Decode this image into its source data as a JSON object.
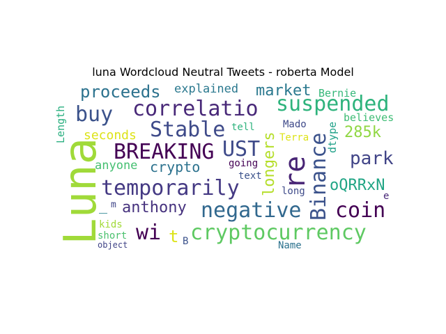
{
  "title": "luna Wordcloud Neutral Tweets - roberta Model",
  "words": [
    {
      "text": "Luna",
      "color": "#a0da39"
    },
    {
      "text": "correlatio",
      "color": "#482878"
    },
    {
      "text": "suspended",
      "color": "#2eb37c"
    },
    {
      "text": "BREAKING",
      "color": "#440154"
    },
    {
      "text": "Binance",
      "color": "#3b528b"
    },
    {
      "text": "negative",
      "color": "#31688e"
    },
    {
      "text": "cryptocurrency",
      "color": "#5ec962"
    },
    {
      "text": "temporarily",
      "color": "#443983"
    },
    {
      "text": "Stable",
      "color": "#3e4a89"
    },
    {
      "text": "buy",
      "color": "#3b528b"
    },
    {
      "text": "UST",
      "color": "#3e4a89"
    },
    {
      "text": "re",
      "color": "#482475"
    },
    {
      "text": "coin",
      "color": "#440154"
    },
    {
      "text": "proceeds",
      "color": "#2c728e"
    },
    {
      "text": "market",
      "color": "#2a788e"
    },
    {
      "text": "anthony",
      "color": "#46327e"
    },
    {
      "text": "park",
      "color": "#414487"
    },
    {
      "text": "285k",
      "color": "#90d743"
    },
    {
      "text": "oQRRxN",
      "color": "#21a585"
    },
    {
      "text": "longers",
      "color": "#b5de2b"
    },
    {
      "text": "explained",
      "color": "#2a788e"
    },
    {
      "text": "crypto",
      "color": "#2c728e"
    },
    {
      "text": "wi",
      "color": "#440154"
    },
    {
      "text": "_",
      "color": "#26828e"
    },
    {
      "text": "Bernie",
      "color": "#35b779"
    },
    {
      "text": "believes",
      "color": "#3dbc74"
    },
    {
      "text": "seconds",
      "color": "#dde318"
    },
    {
      "text": "anyone",
      "color": "#44bf70"
    },
    {
      "text": "Length",
      "color": "#29af7f"
    },
    {
      "text": "dtype",
      "color": "#1fa088"
    },
    {
      "text": "tell",
      "color": "#2db27d"
    },
    {
      "text": "Mado",
      "color": "#3e4989"
    },
    {
      "text": "Terra",
      "color": "#dde318"
    },
    {
      "text": "going",
      "color": "#440154"
    },
    {
      "text": "text",
      "color": "#3b528b"
    },
    {
      "text": "long",
      "color": "#3e4a89"
    },
    {
      "text": "e",
      "color": "#482878"
    },
    {
      "text": "m",
      "color": "#404688"
    },
    {
      "text": "kids",
      "color": "#a2da37"
    },
    {
      "text": "short",
      "color": "#4ac16d"
    },
    {
      "text": "object",
      "color": "#414487"
    },
    {
      "text": "t",
      "color": "#dde318"
    },
    {
      "text": "B",
      "color": "#3b528b"
    },
    {
      "text": "Name",
      "color": "#2c728e"
    }
  ]
}
